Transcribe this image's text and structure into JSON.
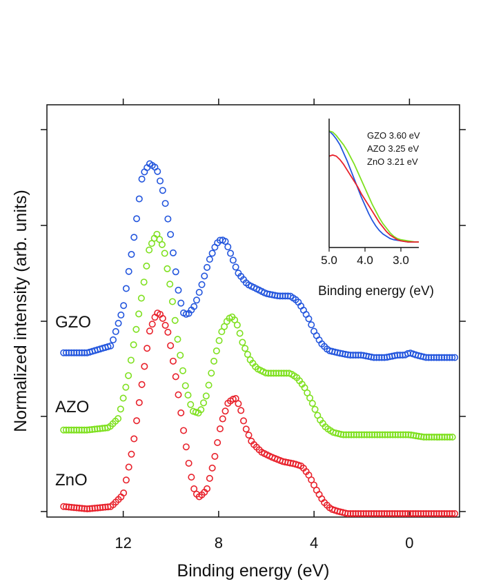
{
  "chart_data": [
    {
      "type": "scatter",
      "xlabel": "Binding energy (eV)",
      "ylabel": "Normalized intensity (arb. units)",
      "xlim": [
        15.2,
        -2.1
      ],
      "x_reversed": true,
      "x_ticks": [
        12,
        8,
        4,
        0
      ],
      "x_tick_labels": [
        "12",
        "8",
        "4",
        "0"
      ],
      "marker": "open-circle",
      "series": [
        {
          "name": "GZO",
          "color": "#2255dd",
          "x": [
            14.5,
            13.5,
            12.5,
            12.0,
            11.5,
            11.2,
            10.9,
            10.6,
            10.3,
            10.0,
            9.7,
            9.5,
            9.3,
            9.0,
            8.7,
            8.4,
            8.1,
            7.9,
            7.7,
            7.5,
            7.2,
            6.8,
            6.4,
            6.0,
            5.5,
            5.0,
            4.7,
            4.5,
            4.2,
            4.0,
            3.7,
            3.4,
            3.0,
            2.5,
            2.0,
            1.5,
            1.0,
            0.5,
            0.2,
            0.0,
            -0.3,
            -0.7,
            -1.2,
            -1.6,
            -1.9
          ],
          "y": [
            0.03,
            0.03,
            0.06,
            0.22,
            0.55,
            0.78,
            0.83,
            0.81,
            0.7,
            0.52,
            0.3,
            0.2,
            0.19,
            0.23,
            0.32,
            0.42,
            0.49,
            0.51,
            0.5,
            0.45,
            0.37,
            0.32,
            0.3,
            0.28,
            0.27,
            0.27,
            0.25,
            0.22,
            0.17,
            0.12,
            0.07,
            0.04,
            0.03,
            0.02,
            0.02,
            0.01,
            0.01,
            0.02,
            0.02,
            0.03,
            0.02,
            0.01,
            0.01,
            0.01,
            0.01
          ]
        },
        {
          "name": "AZO",
          "color": "#7ee01e",
          "x": [
            14.5,
            13.5,
            12.6,
            12.2,
            11.8,
            11.3,
            10.9,
            10.6,
            10.3,
            10.0,
            9.7,
            9.4,
            9.1,
            8.8,
            8.5,
            8.2,
            7.9,
            7.6,
            7.4,
            7.2,
            7.0,
            6.7,
            6.4,
            6.0,
            5.5,
            5.0,
            4.7,
            4.4,
            4.1,
            3.8,
            3.5,
            3.2,
            2.8,
            2.3,
            1.8,
            1.2,
            0.6,
            0.0,
            -0.6,
            -1.2,
            -1.8
          ],
          "y": [
            0.03,
            0.03,
            0.04,
            0.08,
            0.25,
            0.55,
            0.8,
            0.86,
            0.8,
            0.62,
            0.4,
            0.22,
            0.11,
            0.1,
            0.18,
            0.32,
            0.44,
            0.5,
            0.51,
            0.47,
            0.4,
            0.33,
            0.29,
            0.27,
            0.27,
            0.27,
            0.25,
            0.21,
            0.15,
            0.08,
            0.04,
            0.02,
            0.01,
            0.01,
            0.01,
            0.01,
            0.01,
            0.01,
            0.0,
            0.0,
            0.0
          ]
        },
        {
          "name": "ZnO",
          "color": "#e8202a",
          "x": [
            14.5,
            13.5,
            12.5,
            12.0,
            11.6,
            11.2,
            10.9,
            10.6,
            10.4,
            10.1,
            9.8,
            9.5,
            9.2,
            9.0,
            8.8,
            8.5,
            8.2,
            7.9,
            7.6,
            7.3,
            7.1,
            6.9,
            6.6,
            6.2,
            5.8,
            5.3,
            4.8,
            4.5,
            4.2,
            3.9,
            3.6,
            3.3,
            3.0,
            2.6,
            2.0,
            1.5,
            1.0,
            0.5,
            0.0,
            -0.5,
            -1.0,
            -1.5,
            -1.9
          ],
          "y": [
            0.03,
            0.02,
            0.03,
            0.08,
            0.28,
            0.56,
            0.77,
            0.85,
            0.84,
            0.76,
            0.58,
            0.37,
            0.18,
            0.09,
            0.07,
            0.1,
            0.22,
            0.38,
            0.47,
            0.49,
            0.45,
            0.37,
            0.3,
            0.26,
            0.24,
            0.22,
            0.21,
            0.2,
            0.16,
            0.1,
            0.05,
            0.02,
            0.01,
            0.0,
            0.0,
            0.0,
            0.0,
            0.0,
            0.0,
            0.0,
            0.0,
            0.0,
            0.0
          ]
        }
      ]
    },
    {
      "type": "line",
      "inset": true,
      "xlabel": "Binding energy (eV)",
      "xlim": [
        5.0,
        2.5
      ],
      "x_reversed": true,
      "x_ticks": [
        5.0,
        4.0,
        3.0
      ],
      "x_tick_labels": [
        "5.0",
        "4.0",
        "3.0"
      ],
      "legend": [
        "GZO 3.60 eV",
        "AZO 3.25 eV",
        "ZnO 3.21 eV"
      ],
      "legend_position": "top-right",
      "series": [
        {
          "name": "GZO",
          "color": "#2255dd",
          "x": [
            5.0,
            4.9,
            4.8,
            4.7,
            4.6,
            4.5,
            4.4,
            4.3,
            4.2,
            4.1,
            4.0,
            3.9,
            3.8,
            3.7,
            3.6,
            3.5,
            3.4,
            3.3,
            3.2,
            3.0,
            2.8,
            2.6,
            2.5
          ],
          "y": [
            1.0,
            0.97,
            0.93,
            0.88,
            0.81,
            0.74,
            0.66,
            0.58,
            0.5,
            0.42,
            0.35,
            0.28,
            0.22,
            0.17,
            0.13,
            0.1,
            0.08,
            0.06,
            0.05,
            0.04,
            0.03,
            0.03,
            0.03
          ]
        },
        {
          "name": "AZO",
          "color": "#7ee01e",
          "x": [
            5.0,
            4.9,
            4.8,
            4.7,
            4.6,
            4.5,
            4.4,
            4.3,
            4.2,
            4.1,
            4.0,
            3.9,
            3.8,
            3.7,
            3.6,
            3.5,
            3.4,
            3.3,
            3.2,
            3.1,
            3.0,
            2.8,
            2.6,
            2.5
          ],
          "y": [
            1.0,
            0.99,
            0.96,
            0.92,
            0.88,
            0.83,
            0.77,
            0.71,
            0.64,
            0.57,
            0.5,
            0.43,
            0.36,
            0.3,
            0.24,
            0.19,
            0.15,
            0.11,
            0.08,
            0.06,
            0.05,
            0.04,
            0.03,
            0.03
          ]
        },
        {
          "name": "ZnO",
          "color": "#e8202a",
          "x": [
            5.0,
            4.9,
            4.8,
            4.7,
            4.6,
            4.5,
            4.4,
            4.3,
            4.2,
            4.1,
            4.0,
            3.9,
            3.8,
            3.7,
            3.6,
            3.5,
            3.4,
            3.3,
            3.2,
            3.1,
            3.0,
            2.8,
            2.6,
            2.5
          ],
          "y": [
            0.78,
            0.79,
            0.78,
            0.75,
            0.71,
            0.66,
            0.61,
            0.56,
            0.51,
            0.45,
            0.4,
            0.35,
            0.3,
            0.25,
            0.2,
            0.16,
            0.12,
            0.09,
            0.07,
            0.05,
            0.04,
            0.03,
            0.03,
            0.03
          ]
        }
      ]
    }
  ]
}
